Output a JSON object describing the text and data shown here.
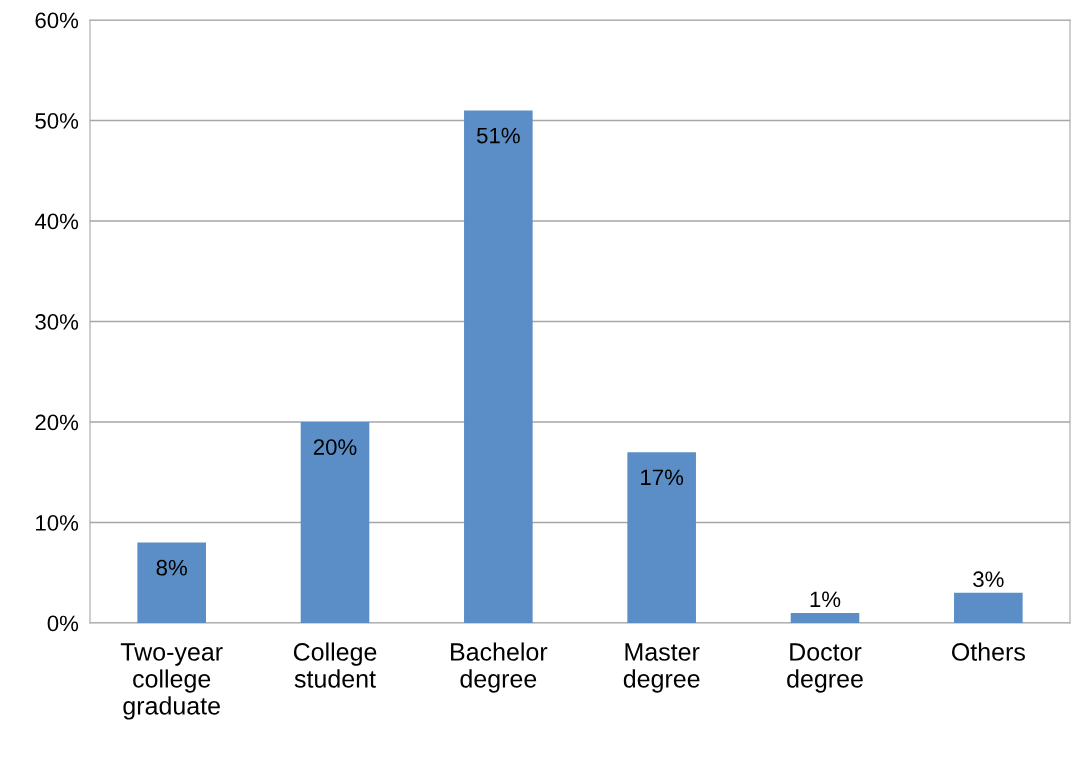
{
  "chart_data": {
    "type": "bar",
    "categories": [
      "Two-year\ncollege\ngraduate",
      "College\nstudent",
      "Bachelor\ndegree",
      "Master\ndegree",
      "Doctor\ndegree",
      "Others"
    ],
    "values": [
      8,
      20,
      51,
      17,
      1,
      3
    ],
    "value_labels": [
      "8%",
      "20%",
      "51%",
      "17%",
      "1%",
      "3%"
    ],
    "color": "#5b8ec6",
    "ylim": [
      0,
      60
    ],
    "yticks": [
      {
        "value": 0,
        "label": "0%"
      },
      {
        "value": 10,
        "label": "10%"
      },
      {
        "value": 20,
        "label": "20%"
      },
      {
        "value": 30,
        "label": "30%"
      },
      {
        "value": 40,
        "label": "40%"
      },
      {
        "value": 50,
        "label": "50%"
      },
      {
        "value": 60,
        "label": "60%"
      }
    ],
    "grid": "y",
    "legend": false
  }
}
